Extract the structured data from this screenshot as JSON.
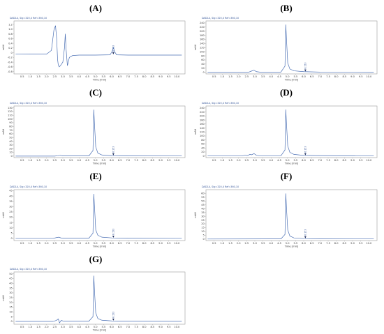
{
  "chart_data": [
    {
      "id": "A",
      "type": "line",
      "panel_label": "(A)",
      "trace_title": "DAD1A, Sig=320,4 Ref=360,10",
      "xlabel": "Time [min]",
      "ylabel": "mAU",
      "xlim": [
        0,
        10.5
      ],
      "ylim": [
        -0.9,
        1.35
      ],
      "xticks": [
        0.5,
        1.0,
        1.5,
        2.0,
        2.5,
        3.0,
        3.5,
        4.0,
        4.5,
        5.0,
        5.5,
        6.0,
        6.5,
        7.0,
        7.5,
        8.0,
        8.5,
        9.0,
        9.5,
        10.0
      ],
      "xtick_labels": [
        "0.5",
        "1.0",
        "1.5",
        "2.0",
        "2.5",
        "3.0",
        "3.5",
        "4.0",
        "4.5",
        "5.0",
        "5.5",
        "6.0",
        "6.5",
        "7.0",
        "7.5",
        "8.0",
        "8.5",
        "9.0",
        "9.5",
        "10.0"
      ],
      "yticks": [
        -0.8,
        -0.6,
        -0.4,
        -0.2,
        0,
        0.2,
        0.4,
        0.6,
        0.8,
        1.0,
        1.2
      ],
      "ytick_labels": [
        "-0.8",
        "-0.6",
        "-0.4",
        "-0.2",
        "0",
        "0.2",
        "0.4",
        "0.6",
        "0.8",
        "1.0",
        "1.2"
      ],
      "baseline": -0.1,
      "annotation": {
        "x": 6.1,
        "text": "6.153"
      },
      "x": [
        0.1,
        1.0,
        2.0,
        2.3,
        2.45,
        2.55,
        2.62,
        2.68,
        2.72,
        2.78,
        2.85,
        3.0,
        3.1,
        3.15,
        3.2,
        3.28,
        3.4,
        3.6,
        4.0,
        5.0,
        5.9,
        6.02,
        6.1,
        6.18,
        6.3,
        7.0,
        8.0,
        9.0,
        10.3
      ],
      "y": [
        -0.05,
        -0.06,
        -0.06,
        0.1,
        0.95,
        1.15,
        0.6,
        -0.3,
        -0.52,
        -0.6,
        -0.55,
        -0.4,
        0.2,
        0.8,
        0.15,
        -0.55,
        -0.2,
        -0.12,
        -0.1,
        -0.1,
        -0.09,
        0.05,
        0.22,
        0.04,
        -0.09,
        -0.1,
        -0.1,
        -0.1,
        -0.1
      ]
    },
    {
      "id": "B",
      "type": "line",
      "panel_label": "(B)",
      "trace_title": "DAD1A, Sig=320,4 Ref=360,10",
      "xlabel": "Time [min]",
      "ylabel": "mAU",
      "xlim": [
        0,
        10.5
      ],
      "ylim": [
        -8,
        250
      ],
      "xticks": [
        0.5,
        1.0,
        1.5,
        2.0,
        2.5,
        3.0,
        3.5,
        4.0,
        4.5,
        5.0,
        5.5,
        6.0,
        6.5,
        7.0,
        7.5,
        8.0,
        8.5,
        9.0,
        9.5,
        10.0
      ],
      "xtick_labels": [
        "0.5",
        "1.0",
        "1.5",
        "2.0",
        "2.5",
        "3.0",
        "3.5",
        "4.0",
        "4.5",
        "5.0",
        "5.5",
        "6.0",
        "6.5",
        "7.0",
        "7.5",
        "8.0",
        "8.5",
        "9.0",
        "9.5",
        "10.0"
      ],
      "yticks": [
        0,
        20,
        40,
        60,
        80,
        100,
        120,
        140,
        160,
        180,
        200,
        220,
        240
      ],
      "ytick_labels": [
        "0",
        "20",
        "40",
        "60",
        "80",
        "100",
        "120",
        "140",
        "160",
        "180",
        "200",
        "220",
        "240"
      ],
      "baseline": 0,
      "annotation": {
        "x": 6.1,
        "text": "6.153"
      },
      "x": [
        0.1,
        2.0,
        2.6,
        2.8,
        2.95,
        3.1,
        3.3,
        4.6,
        4.85,
        4.9,
        4.95,
        5.02,
        5.15,
        5.4,
        6.0,
        7.0,
        10.3
      ],
      "y": [
        0,
        0,
        0,
        6,
        10,
        3,
        1,
        1,
        30,
        232,
        150,
        45,
        16,
        7,
        3,
        1,
        0.5
      ]
    },
    {
      "id": "C",
      "type": "line",
      "panel_label": "(C)",
      "trace_title": "DAD1A, Sig=320,4 Ref=360,10",
      "xlabel": "Time [min]",
      "ylabel": "mAU",
      "xlim": [
        0,
        10.5
      ],
      "ylim": [
        -4,
        135
      ],
      "xticks": [
        0.5,
        1.0,
        1.5,
        2.0,
        2.5,
        3.0,
        3.5,
        4.0,
        4.5,
        5.0,
        5.5,
        6.0,
        6.5,
        7.0,
        7.5,
        8.0,
        8.5,
        9.0,
        9.5,
        10.0
      ],
      "xtick_labels": [
        "0.5",
        "1.0",
        "1.5",
        "2.0",
        "2.5",
        "3.0",
        "3.5",
        "4.0",
        "4.5",
        "5.0",
        "5.5",
        "6.0",
        "6.5",
        "7.0",
        "7.5",
        "8.0",
        "8.5",
        "9.0",
        "9.5",
        "10.0"
      ],
      "yticks": [
        0,
        10,
        20,
        30,
        40,
        50,
        60,
        70,
        80,
        90,
        100,
        110,
        120,
        130
      ],
      "ytick_labels": [
        "0",
        "10",
        "20",
        "30",
        "40",
        "50",
        "60",
        "70",
        "80",
        "90",
        "100",
        "110",
        "120",
        "130"
      ],
      "baseline": 0,
      "annotation": {
        "x": 6.1,
        "text": "6.153"
      },
      "x": [
        0.1,
        2.5,
        2.7,
        2.85,
        3.0,
        4.6,
        4.85,
        4.9,
        4.95,
        5.02,
        5.15,
        5.4,
        6.0,
        7.0,
        10.3
      ],
      "y": [
        0,
        0,
        1,
        2,
        0.5,
        0.5,
        15,
        125,
        80,
        25,
        8,
        3,
        1,
        0.5,
        0.3
      ]
    },
    {
      "id": "D",
      "type": "line",
      "panel_label": "(D)",
      "trace_title": "DAD1A, Sig=320,4 Ref=360,10",
      "xlabel": "Time [min]",
      "ylabel": "mAU",
      "xlim": [
        0,
        10.5
      ],
      "ylim": [
        -8,
        250
      ],
      "xticks": [
        0.5,
        1.0,
        1.5,
        2.0,
        2.5,
        3.0,
        3.5,
        4.0,
        4.5,
        5.0,
        5.5,
        6.0,
        6.5,
        7.0,
        7.5,
        8.0,
        8.5,
        9.0,
        9.5,
        10.0
      ],
      "xtick_labels": [
        "0.5",
        "1.0",
        "1.5",
        "2.0",
        "2.5",
        "3.0",
        "3.5",
        "4.0",
        "4.5",
        "5.0",
        "5.5",
        "6.0",
        "6.5",
        "7.0",
        "7.5",
        "8.0",
        "8.5",
        "9.0",
        "9.5",
        "10.0"
      ],
      "yticks": [
        0,
        20,
        40,
        60,
        80,
        100,
        120,
        140,
        160,
        180,
        200,
        220,
        240
      ],
      "ytick_labels": [
        "0",
        "20",
        "40",
        "60",
        "80",
        "100",
        "120",
        "140",
        "160",
        "180",
        "200",
        "220",
        "240"
      ],
      "baseline": 0,
      "annotation": {
        "x": 6.1,
        "text": "6.153"
      },
      "x": [
        0.1,
        2.2,
        2.4,
        2.55,
        2.7,
        2.8,
        2.95,
        3.1,
        3.3,
        4.6,
        4.85,
        4.9,
        4.95,
        5.02,
        5.15,
        5.4,
        6.0,
        7.0,
        10.3
      ],
      "y": [
        0,
        0,
        4,
        2,
        8,
        6,
        12,
        3,
        1,
        1,
        30,
        232,
        150,
        50,
        18,
        8,
        3,
        1.5,
        0.5
      ]
    },
    {
      "id": "E",
      "type": "line",
      "panel_label": "(E)",
      "trace_title": "DAD1A, Sig=320,4 Ref=360,10",
      "xlabel": "Time [min]",
      "ylabel": "mAU",
      "xlim": [
        0,
        10.5
      ],
      "ylim": [
        -2,
        46
      ],
      "xticks": [
        0.5,
        1.0,
        1.5,
        2.0,
        2.5,
        3.0,
        3.5,
        4.0,
        4.5,
        5.0,
        5.5,
        6.0,
        6.5,
        7.0,
        7.5,
        8.0,
        8.5,
        9.0,
        9.5,
        10.0
      ],
      "xtick_labels": [
        "0.5",
        "1.0",
        "1.5",
        "2.0",
        "2.5",
        "3.0",
        "3.5",
        "4.0",
        "4.5",
        "5.0",
        "5.5",
        "6.0",
        "6.5",
        "7.0",
        "7.5",
        "8.0",
        "8.5",
        "9.0",
        "9.5",
        "10.0"
      ],
      "yticks": [
        0,
        5,
        10,
        15,
        20,
        25,
        30,
        35,
        40,
        45
      ],
      "ytick_labels": [
        "0",
        "5",
        "10",
        "15",
        "20",
        "25",
        "30",
        "35",
        "40",
        "45"
      ],
      "baseline": 0,
      "annotation": {
        "x": 6.1,
        "text": "6.153"
      },
      "x": [
        0.1,
        2.4,
        2.6,
        2.75,
        2.9,
        3.1,
        4.6,
        4.85,
        4.9,
        4.95,
        5.02,
        5.15,
        5.4,
        6.0,
        7.0,
        10.3
      ],
      "y": [
        0,
        0,
        0.8,
        1.2,
        0.4,
        0.2,
        0.2,
        5,
        42,
        28,
        8,
        3,
        1.2,
        0.5,
        0.2,
        0.1
      ]
    },
    {
      "id": "F",
      "type": "line",
      "panel_label": "(F)",
      "trace_title": "DAD1A, Sig=320,4 Ref=360,10",
      "xlabel": "Time [min]",
      "ylabel": "mAU",
      "xlim": [
        0,
        10.5
      ],
      "ylim": [
        -2,
        65
      ],
      "xticks": [
        0.5,
        1.0,
        1.5,
        2.0,
        2.5,
        3.0,
        3.5,
        4.0,
        4.5,
        5.0,
        5.5,
        6.0,
        6.5,
        7.0,
        7.5,
        8.0,
        8.5,
        9.0,
        9.5,
        10.0
      ],
      "xtick_labels": [
        "0.5",
        "1.0",
        "1.5",
        "2.0",
        "2.5",
        "3.0",
        "3.5",
        "4.0",
        "4.5",
        "5.0",
        "5.5",
        "6.0",
        "6.5",
        "7.0",
        "7.5",
        "8.0",
        "8.5",
        "9.0",
        "9.5",
        "10.0"
      ],
      "yticks": [
        0,
        5,
        10,
        15,
        20,
        25,
        30,
        35,
        40,
        45,
        50,
        55,
        60
      ],
      "ytick_labels": [
        "0",
        "5",
        "10",
        "15",
        "20",
        "25",
        "30",
        "35",
        "40",
        "45",
        "50",
        "55",
        "60"
      ],
      "baseline": 0,
      "annotation": {
        "x": 6.1,
        "text": "6.153"
      },
      "x": [
        0.1,
        4.6,
        4.85,
        4.9,
        4.95,
        5.02,
        5.15,
        5.4,
        6.0,
        7.0,
        10.3
      ],
      "y": [
        0,
        0.2,
        6,
        60,
        38,
        12,
        4,
        1.5,
        0.6,
        0.2,
        0.1
      ]
    },
    {
      "id": "G",
      "type": "line",
      "panel_label": "(G)",
      "trace_title": "DAD1A, Sig=320,4 Ref=360,10",
      "xlabel": "Time [min]",
      "ylabel": "mAU",
      "xlim": [
        0,
        10.5
      ],
      "ylim": [
        -3,
        52
      ],
      "xticks": [
        0.5,
        1.0,
        1.5,
        2.0,
        2.5,
        3.0,
        3.5,
        4.0,
        4.5,
        5.0,
        5.5,
        6.0,
        6.5,
        7.0,
        7.5,
        8.0,
        8.5,
        9.0,
        9.5,
        10.0
      ],
      "xtick_labels": [
        "0.5",
        "1.0",
        "1.5",
        "2.0",
        "2.5",
        "3.0",
        "3.5",
        "4.0",
        "4.5",
        "5.0",
        "5.5",
        "6.0",
        "6.5",
        "7.0",
        "7.5",
        "8.0",
        "8.5",
        "9.0",
        "9.5",
        "10.0"
      ],
      "yticks": [
        0,
        5,
        10,
        15,
        20,
        25,
        30,
        35,
        40,
        45,
        50
      ],
      "ytick_labels": [
        "0",
        "5",
        "10",
        "15",
        "20",
        "25",
        "30",
        "35",
        "40",
        "45",
        "50"
      ],
      "baseline": 0,
      "annotation": {
        "x": 6.1,
        "text": "6.153"
      },
      "x": [
        0.1,
        2.4,
        2.6,
        2.72,
        2.8,
        2.9,
        3.0,
        3.2,
        4.6,
        4.85,
        4.9,
        4.95,
        5.02,
        5.15,
        5.4,
        6.0,
        7.0,
        10.3
      ],
      "y": [
        0,
        0,
        1,
        2.5,
        -1.5,
        1,
        0.5,
        0.2,
        0.2,
        5,
        48,
        30,
        9,
        3,
        1.2,
        0.5,
        0.2,
        0.1
      ]
    }
  ]
}
